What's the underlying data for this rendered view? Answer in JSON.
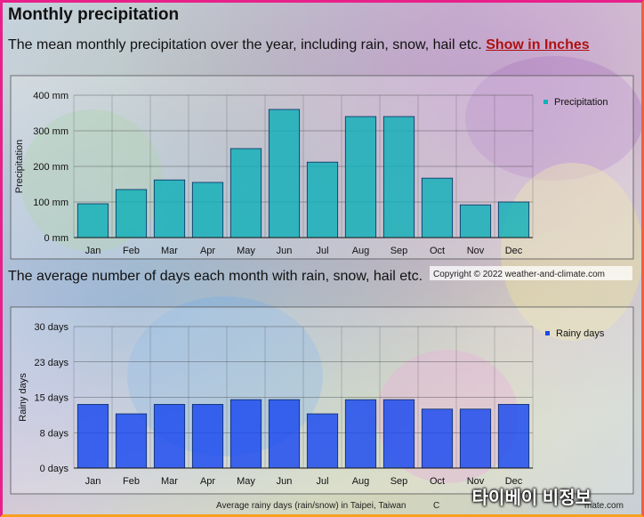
{
  "title": "Monthly precipitation",
  "subtitle": "The mean monthly precipitation over the year, including rain, snow, hail etc.",
  "show_inches_link": "Show in Inches",
  "subtitle2": "The average number of days each month with rain, snow, hail etc.",
  "copyright": "Copyright © 2022  weather-and-climate.com",
  "caption_bottom": "Average rainy days (rain/snow) in Taipei, Taiwan",
  "caption_bottom_tail": "C",
  "caption_bottom_site": "mate.com",
  "overlay_text": "타이베이 비정보",
  "chart_data": [
    {
      "type": "bar",
      "categories": [
        "Jan",
        "Feb",
        "Mar",
        "Apr",
        "May",
        "Jun",
        "Jul",
        "Aug",
        "Sep",
        "Oct",
        "Nov",
        "Dec"
      ],
      "series": [
        {
          "name": "Precipitation",
          "values": [
            95,
            135,
            162,
            155,
            250,
            360,
            212,
            340,
            340,
            167,
            92,
            100
          ],
          "color": "#10b0b8"
        }
      ],
      "ylabel": "Precipitation",
      "ylim": [
        0,
        400
      ],
      "yticks": [
        "0 mm",
        "100 mm",
        "200 mm",
        "300 mm",
        "400 mm"
      ],
      "grid": true,
      "legend": "top-right"
    },
    {
      "type": "bar",
      "categories": [
        "Jan",
        "Feb",
        "Mar",
        "Apr",
        "May",
        "Jun",
        "Jul",
        "Aug",
        "Sep",
        "Oct",
        "Nov",
        "Dec"
      ],
      "series": [
        {
          "name": "Rainy days",
          "values": [
            13.5,
            11.5,
            13.5,
            13.5,
            14.5,
            14.5,
            11.5,
            14.5,
            14.5,
            12.5,
            12.5,
            13.5
          ],
          "color": "#1848f0"
        }
      ],
      "ylabel": "Rainy days",
      "ylim": [
        0,
        30
      ],
      "yticks": [
        "0 days",
        "8 days",
        "15 days",
        "23 days",
        "30 days"
      ],
      "grid": true,
      "legend": "top-right"
    }
  ]
}
